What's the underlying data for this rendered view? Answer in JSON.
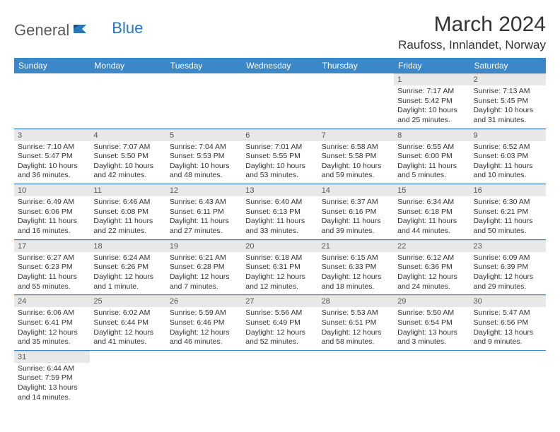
{
  "logo": {
    "part1": "General",
    "part2": "Blue"
  },
  "title": "March 2024",
  "location": "Raufoss, Innlandet, Norway",
  "colors": {
    "header_bg": "#3b87c8",
    "header_text": "#ffffff",
    "daynum_bg": "#e8e8e8",
    "row_border": "#3b87c8",
    "logo_gray": "#5a5a5a",
    "logo_blue": "#2676bc"
  },
  "weekdays": [
    "Sunday",
    "Monday",
    "Tuesday",
    "Wednesday",
    "Thursday",
    "Friday",
    "Saturday"
  ],
  "weeks": [
    [
      null,
      null,
      null,
      null,
      null,
      {
        "n": "1",
        "sunrise": "Sunrise: 7:17 AM",
        "sunset": "Sunset: 5:42 PM",
        "daylight": "Daylight: 10 hours and 25 minutes."
      },
      {
        "n": "2",
        "sunrise": "Sunrise: 7:13 AM",
        "sunset": "Sunset: 5:45 PM",
        "daylight": "Daylight: 10 hours and 31 minutes."
      }
    ],
    [
      {
        "n": "3",
        "sunrise": "Sunrise: 7:10 AM",
        "sunset": "Sunset: 5:47 PM",
        "daylight": "Daylight: 10 hours and 36 minutes."
      },
      {
        "n": "4",
        "sunrise": "Sunrise: 7:07 AM",
        "sunset": "Sunset: 5:50 PM",
        "daylight": "Daylight: 10 hours and 42 minutes."
      },
      {
        "n": "5",
        "sunrise": "Sunrise: 7:04 AM",
        "sunset": "Sunset: 5:53 PM",
        "daylight": "Daylight: 10 hours and 48 minutes."
      },
      {
        "n": "6",
        "sunrise": "Sunrise: 7:01 AM",
        "sunset": "Sunset: 5:55 PM",
        "daylight": "Daylight: 10 hours and 53 minutes."
      },
      {
        "n": "7",
        "sunrise": "Sunrise: 6:58 AM",
        "sunset": "Sunset: 5:58 PM",
        "daylight": "Daylight: 10 hours and 59 minutes."
      },
      {
        "n": "8",
        "sunrise": "Sunrise: 6:55 AM",
        "sunset": "Sunset: 6:00 PM",
        "daylight": "Daylight: 11 hours and 5 minutes."
      },
      {
        "n": "9",
        "sunrise": "Sunrise: 6:52 AM",
        "sunset": "Sunset: 6:03 PM",
        "daylight": "Daylight: 11 hours and 10 minutes."
      }
    ],
    [
      {
        "n": "10",
        "sunrise": "Sunrise: 6:49 AM",
        "sunset": "Sunset: 6:06 PM",
        "daylight": "Daylight: 11 hours and 16 minutes."
      },
      {
        "n": "11",
        "sunrise": "Sunrise: 6:46 AM",
        "sunset": "Sunset: 6:08 PM",
        "daylight": "Daylight: 11 hours and 22 minutes."
      },
      {
        "n": "12",
        "sunrise": "Sunrise: 6:43 AM",
        "sunset": "Sunset: 6:11 PM",
        "daylight": "Daylight: 11 hours and 27 minutes."
      },
      {
        "n": "13",
        "sunrise": "Sunrise: 6:40 AM",
        "sunset": "Sunset: 6:13 PM",
        "daylight": "Daylight: 11 hours and 33 minutes."
      },
      {
        "n": "14",
        "sunrise": "Sunrise: 6:37 AM",
        "sunset": "Sunset: 6:16 PM",
        "daylight": "Daylight: 11 hours and 39 minutes."
      },
      {
        "n": "15",
        "sunrise": "Sunrise: 6:34 AM",
        "sunset": "Sunset: 6:18 PM",
        "daylight": "Daylight: 11 hours and 44 minutes."
      },
      {
        "n": "16",
        "sunrise": "Sunrise: 6:30 AM",
        "sunset": "Sunset: 6:21 PM",
        "daylight": "Daylight: 11 hours and 50 minutes."
      }
    ],
    [
      {
        "n": "17",
        "sunrise": "Sunrise: 6:27 AM",
        "sunset": "Sunset: 6:23 PM",
        "daylight": "Daylight: 11 hours and 55 minutes."
      },
      {
        "n": "18",
        "sunrise": "Sunrise: 6:24 AM",
        "sunset": "Sunset: 6:26 PM",
        "daylight": "Daylight: 12 hours and 1 minute."
      },
      {
        "n": "19",
        "sunrise": "Sunrise: 6:21 AM",
        "sunset": "Sunset: 6:28 PM",
        "daylight": "Daylight: 12 hours and 7 minutes."
      },
      {
        "n": "20",
        "sunrise": "Sunrise: 6:18 AM",
        "sunset": "Sunset: 6:31 PM",
        "daylight": "Daylight: 12 hours and 12 minutes."
      },
      {
        "n": "21",
        "sunrise": "Sunrise: 6:15 AM",
        "sunset": "Sunset: 6:33 PM",
        "daylight": "Daylight: 12 hours and 18 minutes."
      },
      {
        "n": "22",
        "sunrise": "Sunrise: 6:12 AM",
        "sunset": "Sunset: 6:36 PM",
        "daylight": "Daylight: 12 hours and 24 minutes."
      },
      {
        "n": "23",
        "sunrise": "Sunrise: 6:09 AM",
        "sunset": "Sunset: 6:39 PM",
        "daylight": "Daylight: 12 hours and 29 minutes."
      }
    ],
    [
      {
        "n": "24",
        "sunrise": "Sunrise: 6:06 AM",
        "sunset": "Sunset: 6:41 PM",
        "daylight": "Daylight: 12 hours and 35 minutes."
      },
      {
        "n": "25",
        "sunrise": "Sunrise: 6:02 AM",
        "sunset": "Sunset: 6:44 PM",
        "daylight": "Daylight: 12 hours and 41 minutes."
      },
      {
        "n": "26",
        "sunrise": "Sunrise: 5:59 AM",
        "sunset": "Sunset: 6:46 PM",
        "daylight": "Daylight: 12 hours and 46 minutes."
      },
      {
        "n": "27",
        "sunrise": "Sunrise: 5:56 AM",
        "sunset": "Sunset: 6:49 PM",
        "daylight": "Daylight: 12 hours and 52 minutes."
      },
      {
        "n": "28",
        "sunrise": "Sunrise: 5:53 AM",
        "sunset": "Sunset: 6:51 PM",
        "daylight": "Daylight: 12 hours and 58 minutes."
      },
      {
        "n": "29",
        "sunrise": "Sunrise: 5:50 AM",
        "sunset": "Sunset: 6:54 PM",
        "daylight": "Daylight: 13 hours and 3 minutes."
      },
      {
        "n": "30",
        "sunrise": "Sunrise: 5:47 AM",
        "sunset": "Sunset: 6:56 PM",
        "daylight": "Daylight: 13 hours and 9 minutes."
      }
    ],
    [
      {
        "n": "31",
        "sunrise": "Sunrise: 6:44 AM",
        "sunset": "Sunset: 7:59 PM",
        "daylight": "Daylight: 13 hours and 14 minutes."
      },
      null,
      null,
      null,
      null,
      null,
      null
    ]
  ]
}
